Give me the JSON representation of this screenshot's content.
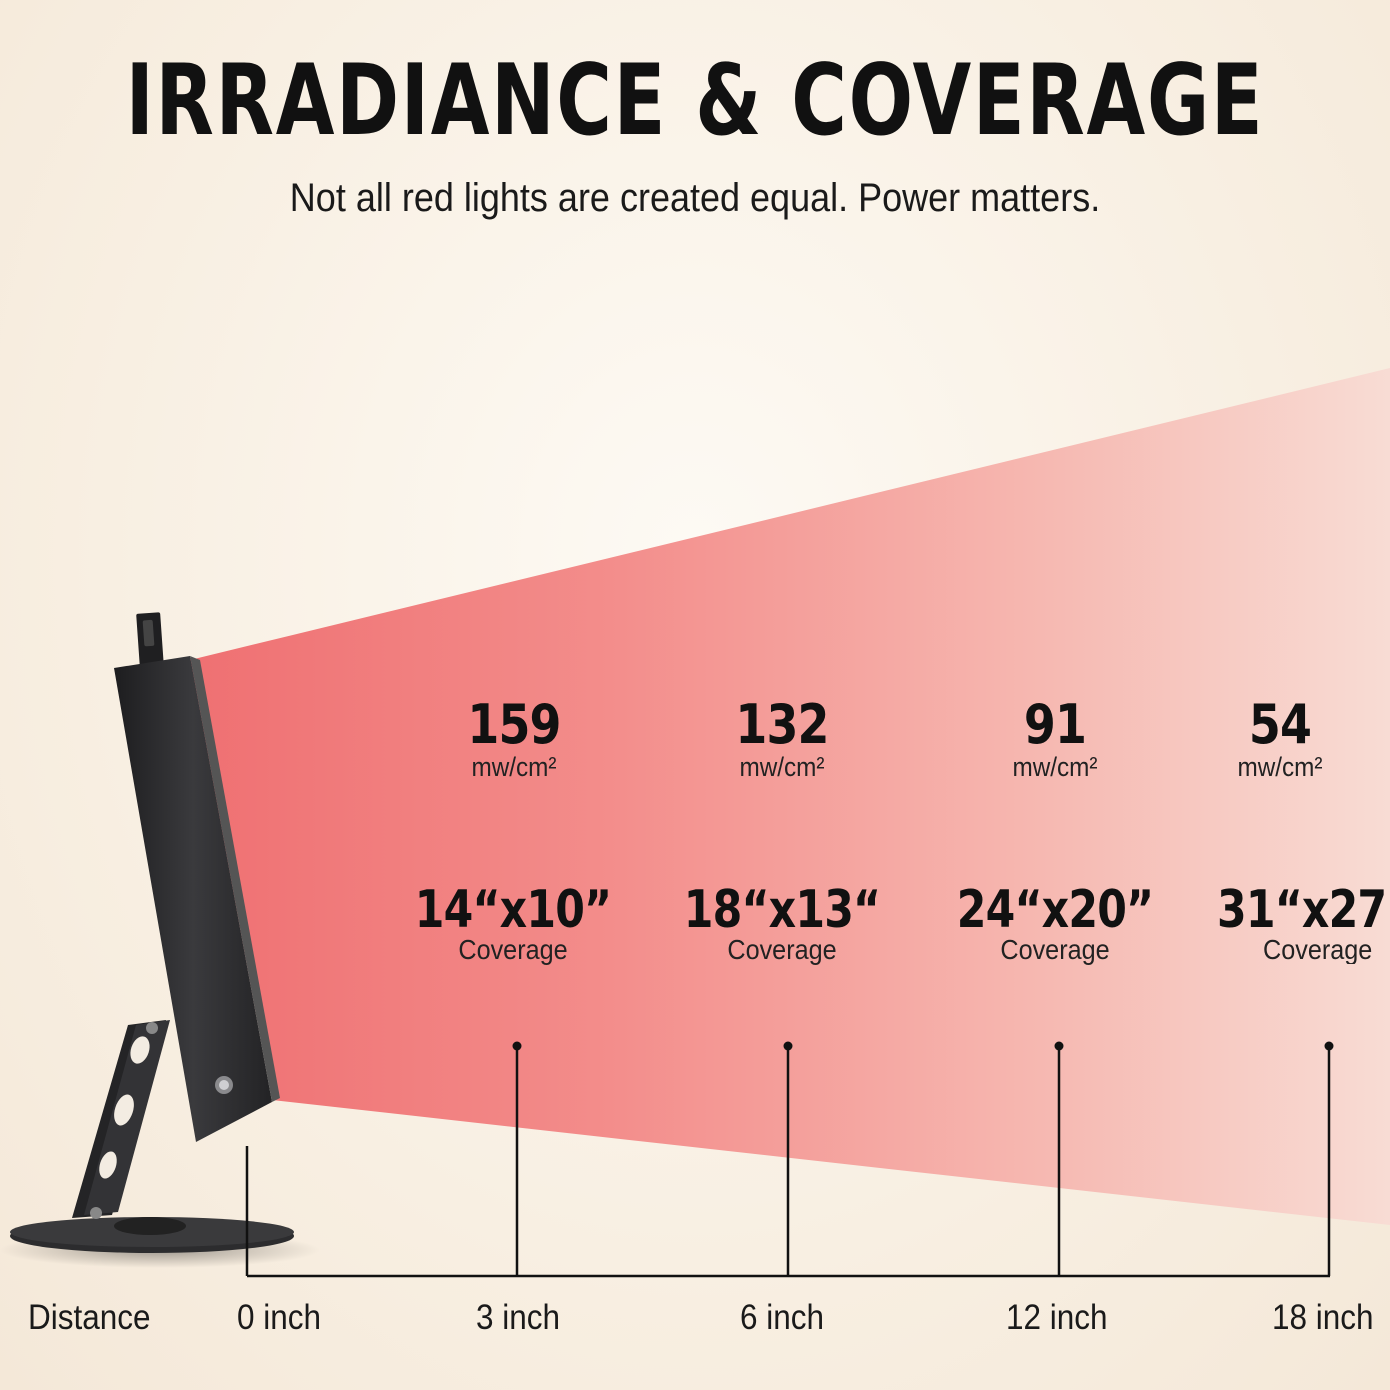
{
  "header": {
    "title": "IRRADIANCE & COVERAGE",
    "subtitle": "Not all red lights are created equal. Power matters."
  },
  "colors": {
    "beam_near": "#f07a7c",
    "beam_far": "#f7d3cc",
    "device": "#2a2a2c",
    "text": "#111111"
  },
  "distance_label": "Distance",
  "distances": [
    "0 inch",
    "3 inch",
    "6 inch",
    "12 inch",
    "18 inch"
  ],
  "measurements": [
    {
      "irradiance": "159",
      "unit": "mw/cm²",
      "coverage": "14“x10”",
      "coverage_label": "Coverage"
    },
    {
      "irradiance": "132",
      "unit": "mw/cm²",
      "coverage": "18“x13“",
      "coverage_label": "Coverage"
    },
    {
      "irradiance": "91",
      "unit": "mw/cm²",
      "coverage": "24“x20”",
      "coverage_label": "Coverage"
    },
    {
      "irradiance": "54",
      "unit": "mw/cm²",
      "coverage": "31“x27”",
      "coverage_label": "Coverage"
    }
  ]
}
